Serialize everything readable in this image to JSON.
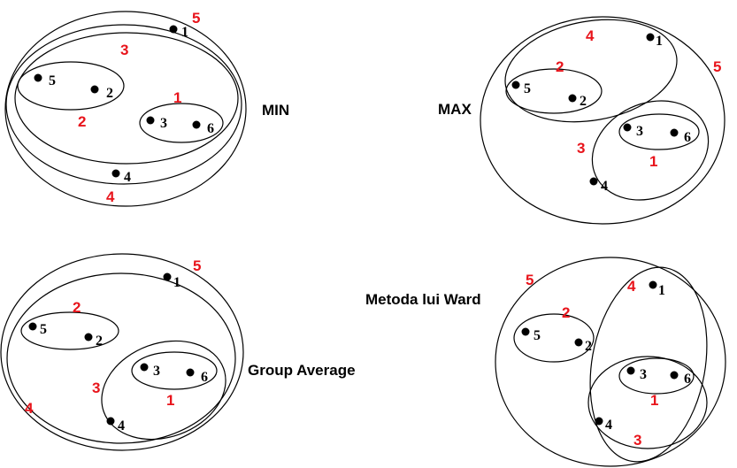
{
  "step_color": "#e8141b",
  "panels": {
    "min": {
      "title": "MIN",
      "points": [
        "1",
        "5",
        "2",
        "3",
        "6",
        "4"
      ],
      "steps": [
        "5",
        "3",
        "2",
        "1",
        "4"
      ]
    },
    "max": {
      "title": "MAX",
      "points": [
        "1",
        "5",
        "2",
        "3",
        "6",
        "4"
      ],
      "steps": [
        "4",
        "5",
        "2",
        "3",
        "1"
      ]
    },
    "group_average": {
      "title": "Group Average",
      "points": [
        "1",
        "5",
        "2",
        "3",
        "6",
        "4"
      ],
      "steps": [
        "5",
        "2",
        "3",
        "1",
        "4"
      ]
    },
    "ward": {
      "title": "Metoda lui Ward",
      "points": [
        "1",
        "5",
        "2",
        "3",
        "6",
        "4"
      ],
      "steps": [
        "5",
        "4",
        "2",
        "1",
        "3"
      ]
    }
  }
}
